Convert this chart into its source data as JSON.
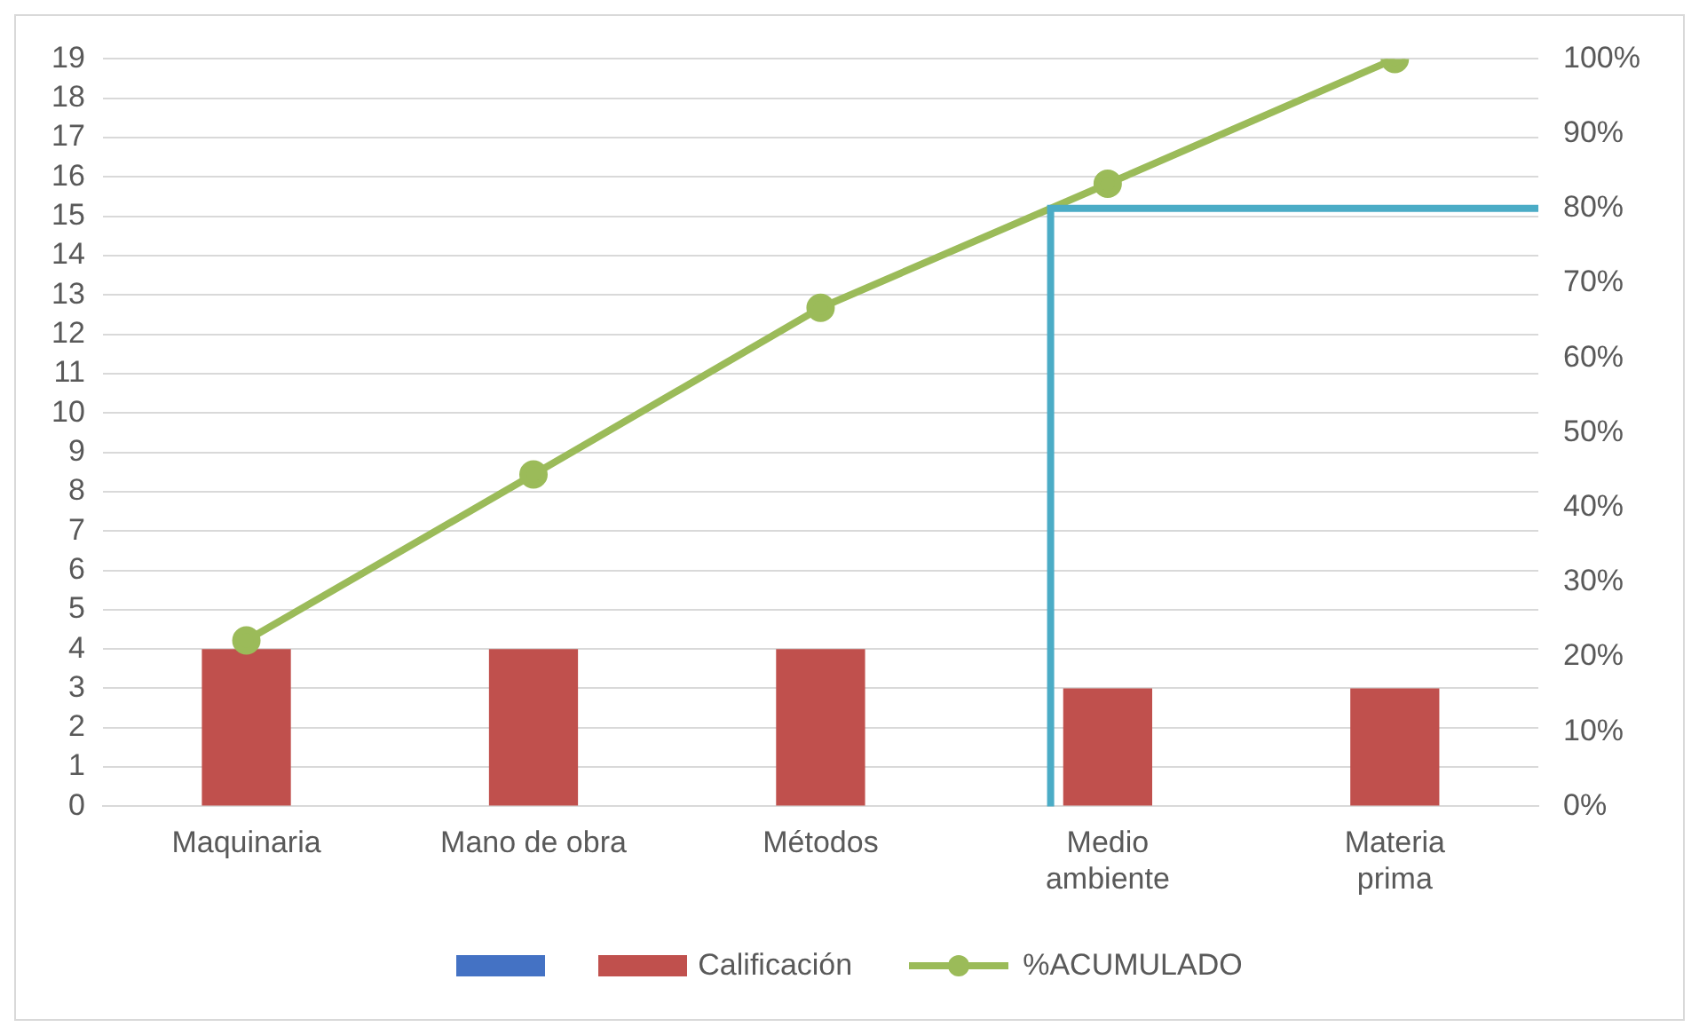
{
  "chart_data": {
    "type": "bar",
    "categories": [
      "Maquinaria",
      "Mano de obra",
      "Métodos",
      "Medio ambiente",
      "Materia prima"
    ],
    "series": [
      {
        "name": "Calificación",
        "color": "#c0504d",
        "values": [
          4,
          4,
          4,
          3,
          3
        ]
      },
      {
        "type": "line",
        "name": "%ACUMULADO",
        "color": "#9bbb59",
        "axis": "y2",
        "values": [
          22.2,
          44.4,
          66.7,
          83.3,
          100
        ]
      }
    ],
    "ylim": [
      0,
      19
    ],
    "yticks": [
      0,
      1,
      2,
      3,
      4,
      5,
      6,
      7,
      8,
      9,
      10,
      11,
      12,
      13,
      14,
      15,
      16,
      17,
      18,
      19
    ],
    "y2lim": [
      0,
      100
    ],
    "y2ticks": [
      {
        "value": 0,
        "label": "0%"
      },
      {
        "value": 10,
        "label": "10%"
      },
      {
        "value": 20,
        "label": "20%"
      },
      {
        "value": 30,
        "label": "30%"
      },
      {
        "value": 40,
        "label": "40%"
      },
      {
        "value": 50,
        "label": "50%"
      },
      {
        "value": 60,
        "label": "60%"
      },
      {
        "value": 70,
        "label": "70%"
      },
      {
        "value": 80,
        "label": "80%"
      },
      {
        "value": 90,
        "label": "90%"
      },
      {
        "value": 100,
        "label": "100%"
      }
    ],
    "ref_lines": [
      {
        "axis": "y2",
        "value": 80,
        "color": "#4bacc6"
      }
    ],
    "grid": "y",
    "legend": "bottom",
    "marker": "circle"
  }
}
